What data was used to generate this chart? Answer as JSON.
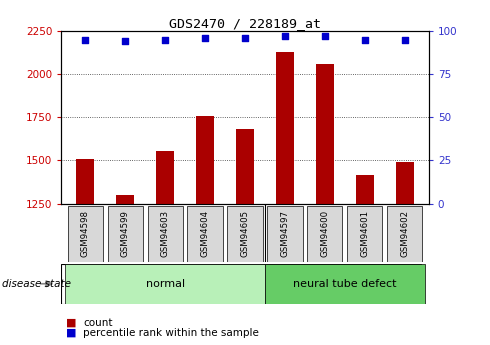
{
  "title": "GDS2470 / 228189_at",
  "samples": [
    "GSM94598",
    "GSM94599",
    "GSM94603",
    "GSM94604",
    "GSM94605",
    "GSM94597",
    "GSM94600",
    "GSM94601",
    "GSM94602"
  ],
  "counts": [
    1510,
    1300,
    1555,
    1755,
    1685,
    2130,
    2060,
    1415,
    1490
  ],
  "percentile_ranks": [
    95,
    94,
    95,
    96,
    96,
    97,
    97,
    95,
    95
  ],
  "groups": [
    {
      "label": "normal",
      "start": 0,
      "end": 5,
      "color": "#b8f0b8"
    },
    {
      "label": "neural tube defect",
      "start": 5,
      "end": 9,
      "color": "#66cc66"
    }
  ],
  "bar_color": "#aa0000",
  "dot_color": "#0000cc",
  "dot_size": 22,
  "ylim_left": [
    1250,
    2250
  ],
  "yticks_left": [
    1250,
    1500,
    1750,
    2000,
    2250
  ],
  "ylim_right": [
    0,
    100
  ],
  "yticks_right": [
    0,
    25,
    50,
    75,
    100
  ],
  "ylabel_left_color": "#cc0000",
  "ylabel_right_color": "#3333cc",
  "grid_color": "#333333",
  "background_plot": "#ffffff",
  "background_label": "#d8d8d8",
  "bar_width": 0.45
}
